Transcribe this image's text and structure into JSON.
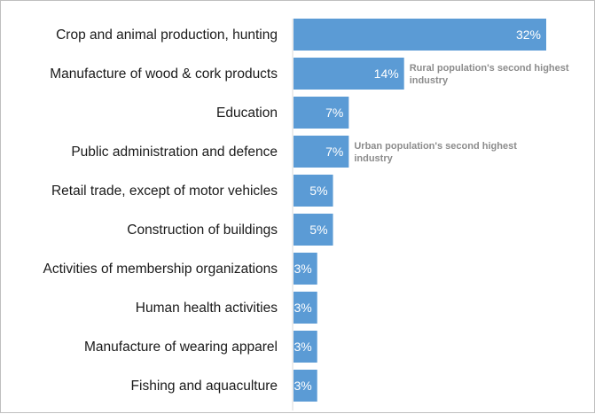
{
  "chart_data": {
    "type": "bar",
    "orientation": "horizontal",
    "categories": [
      "Crop and animal production, hunting",
      "Manufacture of wood & cork products",
      "Education",
      "Public administration and defence",
      "Retail trade, except of motor vehicles",
      "Construction of buildings",
      "Activities of membership organizations",
      "Human health activities",
      "Manufacture of wearing apparel",
      "Fishing and aquaculture"
    ],
    "values": [
      32,
      14,
      7,
      7,
      5,
      5,
      3,
      3,
      3,
      3
    ],
    "value_labels": [
      "32%",
      "14%",
      "7%",
      "7%",
      "5%",
      "5%",
      "3%",
      "3%",
      "3%",
      "3%"
    ],
    "title": "",
    "xlabel": "",
    "ylabel": "",
    "xlim": [
      0,
      35
    ],
    "grid": false,
    "legend": "none",
    "bar_color": "#5b9bd5",
    "annotations": [
      {
        "category_index": 1,
        "lines": [
          "Rural population's second highest",
          "industry"
        ]
      },
      {
        "category_index": 3,
        "lines": [
          "Urban population's second highest",
          "industry"
        ]
      }
    ]
  }
}
